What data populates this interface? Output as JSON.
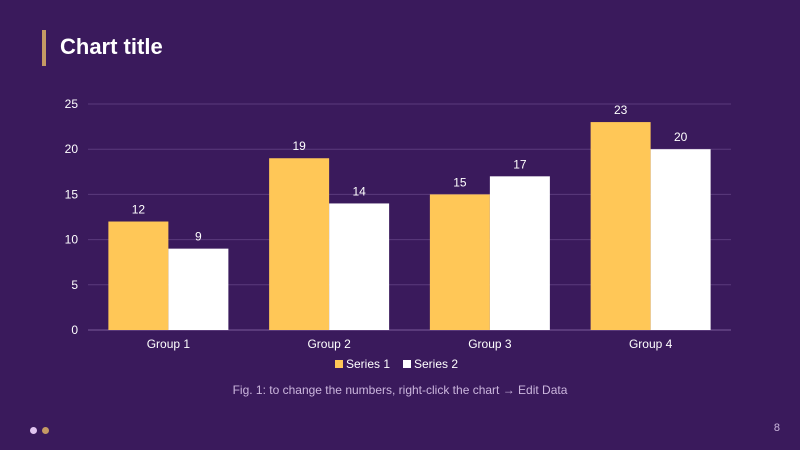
{
  "slide": {
    "title": "Chart title",
    "caption": "Fig. 1: to change the numbers, right-click the chart → Edit Data",
    "page_number": "8"
  },
  "colors": {
    "background": "#3a1a5c",
    "accent": "#c59a64",
    "dot_1": "#e0c4f0",
    "dot_2": "#c59a64"
  },
  "chart_data": {
    "type": "bar",
    "title": "",
    "xlabel": "",
    "ylabel": "",
    "categories": [
      "Group 1",
      "Group 2",
      "Group 3",
      "Group 4"
    ],
    "series": [
      {
        "name": "Series 1",
        "values": [
          12,
          19,
          15,
          23
        ],
        "color": "#ffc757"
      },
      {
        "name": "Series 2",
        "values": [
          9,
          14,
          17,
          20
        ],
        "color": "#ffffff"
      }
    ],
    "ylim": [
      0,
      25
    ],
    "yticks": [
      0,
      5,
      10,
      15,
      20,
      25
    ],
    "grid": true,
    "data_labels": true,
    "legend": "bottom"
  }
}
